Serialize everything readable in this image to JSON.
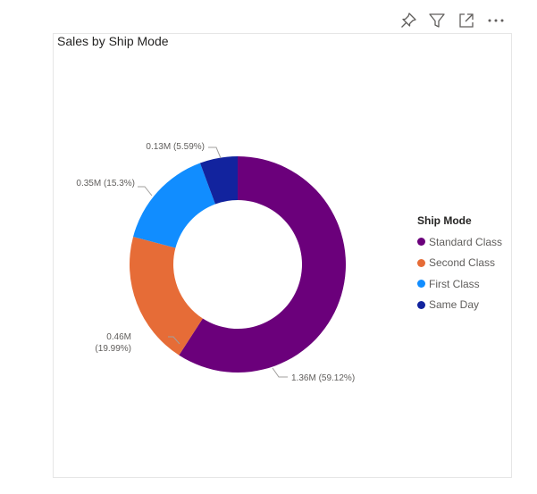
{
  "toolbar": {
    "icons": [
      "pin-icon",
      "filter-icon",
      "focus-mode-icon",
      "more-options-icon"
    ]
  },
  "visual": {
    "title": "Sales by Ship Mode"
  },
  "legend": {
    "title": "Ship Mode",
    "items": [
      {
        "label": "Standard Class",
        "color": "#6B007B"
      },
      {
        "label": "Second Class",
        "color": "#E66C37"
      },
      {
        "label": "First Class",
        "color": "#118DFF"
      },
      {
        "label": "Same Day",
        "color": "#12239E"
      }
    ]
  },
  "chart_data": {
    "type": "pie",
    "title": "Sales by Ship Mode",
    "legend_title": "Ship Mode",
    "legend_position": "right",
    "donut": true,
    "categories": [
      "Standard Class",
      "Second Class",
      "First Class",
      "Same Day"
    ],
    "values": [
      1.36,
      0.46,
      0.35,
      0.13
    ],
    "percentages": [
      59.12,
      19.99,
      15.3,
      5.59
    ],
    "units": "M",
    "colors": [
      "#6B007B",
      "#E66C37",
      "#118DFF",
      "#12239E"
    ],
    "data_labels": [
      "1.36M (59.12%)",
      "0.46M (19.99%)",
      "0.35M (15.3%)",
      "0.13M (5.59%)"
    ]
  }
}
